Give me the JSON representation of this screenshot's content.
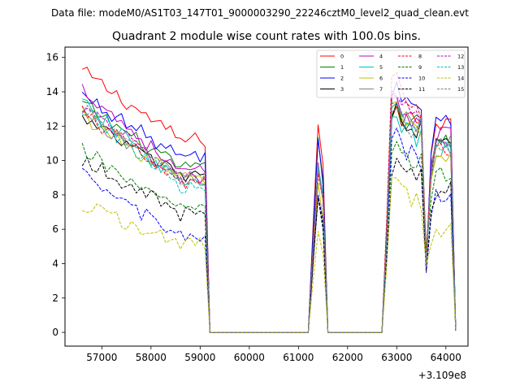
{
  "chart_data": {
    "type": "line",
    "suptitle": "Data file: modeM0/AS1T03_147T01_9000003290_22246cztM0_level2_quad_clean.evt",
    "title": "Quadrant 2 module wise count rates with 100.0s bins.",
    "xlabel": "",
    "ylabel": "",
    "x_offset_label": "+3.109e8",
    "xlim": [
      56250,
      64450
    ],
    "ylim": [
      -0.8,
      16.6
    ],
    "xticks": [
      "57000",
      "58000",
      "59000",
      "60000",
      "61000",
      "62000",
      "63000",
      "64000"
    ],
    "yticks": [
      "0",
      "2",
      "4",
      "6",
      "8",
      "10",
      "12",
      "14",
      "16"
    ],
    "legend_location": "top-right",
    "bin_start": 56600,
    "bin_width": 100,
    "segments": [
      {
        "start": 56600,
        "end": 59100
      },
      {
        "start": 61300,
        "end": 61500
      },
      {
        "start": 62800,
        "end": 63500
      },
      {
        "start": 63700,
        "end": 64100
      }
    ],
    "series": [
      {
        "name": "0",
        "color": "#ff0000",
        "style": "solid",
        "levels": [
          15.2,
          11.2,
          11.5,
          12.6,
          12.2
        ]
      },
      {
        "name": "1",
        "color": "#008000",
        "style": "solid",
        "levels": [
          13.3,
          9.5,
          10.8,
          13.0,
          11.2
        ]
      },
      {
        "name": "2",
        "color": "#0000ff",
        "style": "solid",
        "levels": [
          13.8,
          10.2,
          10.7,
          14.3,
          12.3
        ]
      },
      {
        "name": "3",
        "color": "#000000",
        "style": "solid",
        "levels": [
          12.4,
          9.1,
          9.1,
          13.2,
          10.9
        ]
      },
      {
        "name": "4",
        "color": "#bf00bf",
        "style": "solid",
        "levels": [
          14.2,
          9.3,
          9.4,
          13.4,
          11.5
        ]
      },
      {
        "name": "5",
        "color": "#00bfbf",
        "style": "solid",
        "levels": [
          13.3,
          8.7,
          9.1,
          12.2,
          10.6
        ]
      },
      {
        "name": "6",
        "color": "#bfbf00",
        "style": "solid",
        "levels": [
          12.6,
          8.9,
          8.3,
          13.3,
          10.4
        ]
      },
      {
        "name": "7",
        "color": "#808080",
        "style": "solid",
        "levels": [
          12.8,
          9.0,
          9.3,
          13.1,
          11.2
        ]
      },
      {
        "name": "8",
        "color": "#ff0000",
        "style": "dashed",
        "levels": [
          12.8,
          8.7,
          8.8,
          15.3,
          10.7
        ]
      },
      {
        "name": "9",
        "color": "#008000",
        "style": "dashed",
        "levels": [
          10.6,
          7.1,
          7.6,
          10.8,
          9.1
        ]
      },
      {
        "name": "10",
        "color": "#0000ff",
        "style": "dashed",
        "levels": [
          9.1,
          5.5,
          7.6,
          12.0,
          7.9
        ]
      },
      {
        "name": "11",
        "color": "#000000",
        "style": "dashed",
        "levels": [
          10.1,
          6.9,
          7.5,
          9.8,
          8.3
        ]
      },
      {
        "name": "12",
        "color": "#bf00bf",
        "style": "dashed",
        "levels": [
          13.2,
          9.1,
          9.2,
          13.6,
          11.1
        ]
      },
      {
        "name": "13",
        "color": "#00bfbf",
        "style": "dashed",
        "levels": [
          13.0,
          8.5,
          9.2,
          13.0,
          10.9
        ]
      },
      {
        "name": "14",
        "color": "#bfbf00",
        "style": "dashed",
        "levels": [
          7.4,
          5.2,
          5.6,
          8.9,
          6.0
        ]
      },
      {
        "name": "15",
        "color": "#808080",
        "style": "dashed",
        "levels": [
          13.0,
          8.9,
          9.1,
          12.8,
          10.8
        ]
      }
    ]
  }
}
